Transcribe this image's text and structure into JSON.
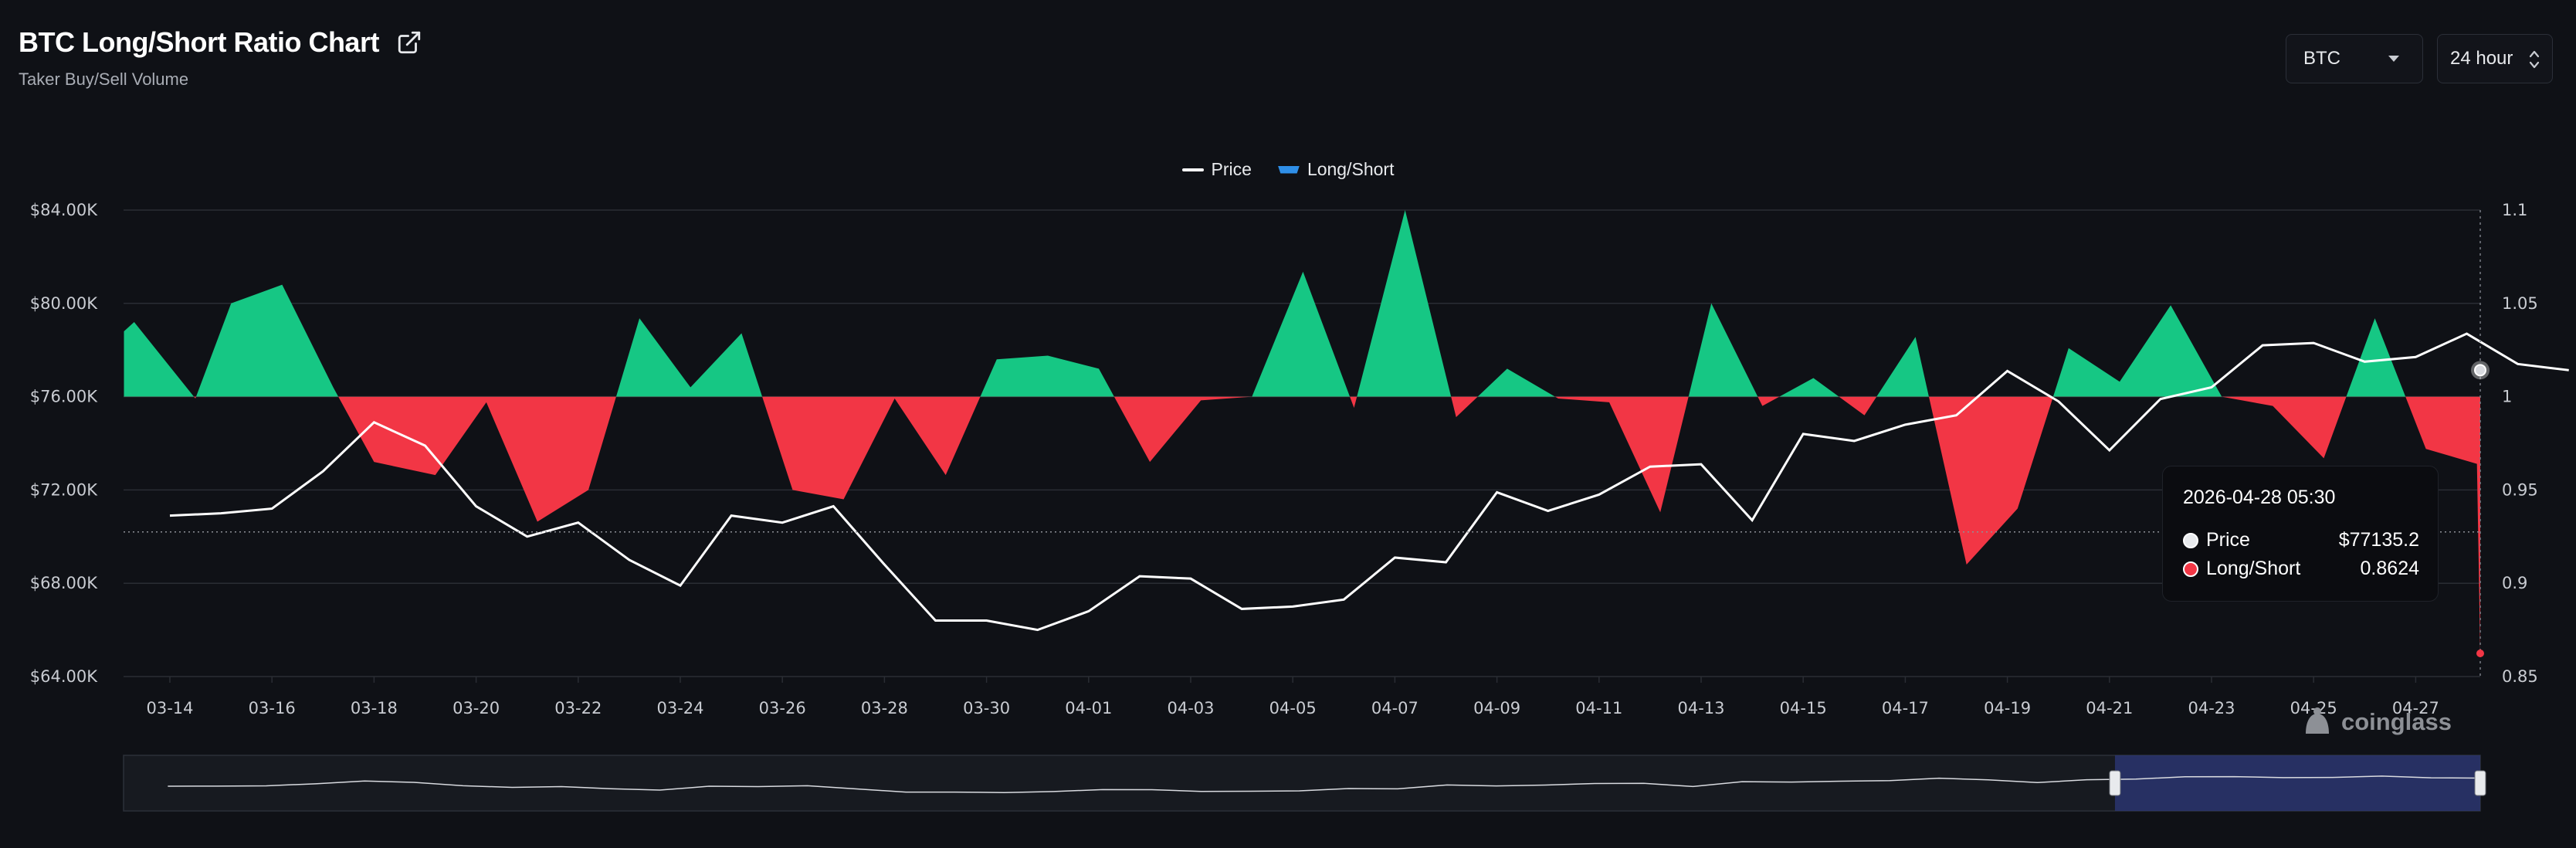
{
  "header": {
    "title": "BTC Long/Short Ratio Chart",
    "subtitle": "Taker Buy/Sell Volume"
  },
  "controls": {
    "coin_select": "BTC",
    "period_select": "24 hour"
  },
  "legend": {
    "price": "Price",
    "long_short": "Long/Short"
  },
  "tooltip": {
    "time": "2026-04-28 05:30",
    "price_label": "Price",
    "price_value": "$77135.2",
    "ratio_label": "Long/Short",
    "ratio_value": "0.8624"
  },
  "watermark": "coinglass",
  "colors": {
    "background": "#0f1116",
    "positive_area": "#16c784",
    "negative_area": "#f23645",
    "price_line": "#ffffff",
    "legend_long_short": "#2f8fe8",
    "navigator_selection": "#2a3570"
  },
  "chart_data": {
    "type": "line",
    "x_tick_labels": [
      "03-14",
      "03-16",
      "03-18",
      "03-20",
      "03-22",
      "03-24",
      "03-26",
      "03-28",
      "03-30",
      "04-01",
      "04-03",
      "04-05",
      "04-07",
      "04-09",
      "04-11",
      "04-13",
      "04-15",
      "04-17",
      "04-19",
      "04-21",
      "04-23",
      "04-25",
      "04-27"
    ],
    "y_left_ticks": [
      "$64.00K",
      "$68.00K",
      "$72.00K",
      "$76.00K",
      "$80.00K",
      "$84.00K"
    ],
    "y_left_range": [
      64000,
      84000
    ],
    "y_right_ticks": [
      "0.85",
      "0.9",
      "0.95",
      "1",
      "1.05",
      "1.1"
    ],
    "y_right_range": [
      0.85,
      1.1
    ],
    "ratio_baseline": 1,
    "grid": true,
    "series": [
      {
        "name": "Price",
        "axis": "left",
        "points": [
          [
            0,
            70900
          ],
          [
            0.5,
            71000
          ],
          [
            1,
            71200
          ],
          [
            1.5,
            72800
          ],
          [
            2,
            74900
          ],
          [
            2.5,
            73900
          ],
          [
            3,
            71300
          ],
          [
            3.5,
            70000
          ],
          [
            4,
            70600
          ],
          [
            4.5,
            69000
          ],
          [
            5,
            67900
          ],
          [
            5.5,
            70900
          ],
          [
            6,
            70600
          ],
          [
            6.5,
            71300
          ],
          [
            7,
            68800
          ],
          [
            7.5,
            66400
          ],
          [
            8,
            66400
          ],
          [
            8.5,
            66000
          ],
          [
            9,
            66800
          ],
          [
            9.5,
            68300
          ],
          [
            10,
            68200
          ],
          [
            10.5,
            66900
          ],
          [
            11,
            67000
          ],
          [
            11.5,
            67300
          ],
          [
            12,
            69100
          ],
          [
            12.5,
            68900
          ],
          [
            13,
            71900
          ],
          [
            13.5,
            71100
          ],
          [
            14,
            71800
          ],
          [
            14.5,
            73000
          ],
          [
            15,
            73100
          ],
          [
            15.5,
            70700
          ],
          [
            16,
            74400
          ],
          [
            16.5,
            74100
          ],
          [
            17,
            74800
          ],
          [
            17.5,
            75200
          ],
          [
            18,
            77100
          ],
          [
            18.5,
            75800
          ],
          [
            19,
            73700
          ],
          [
            19.5,
            75900
          ],
          [
            20,
            76400
          ],
          [
            20.5,
            78200
          ],
          [
            21,
            78300
          ],
          [
            21.5,
            77500
          ],
          [
            22,
            77700
          ],
          [
            22.5,
            78700
          ],
          [
            23,
            77400
          ],
          [
            23.5,
            77135.2
          ]
        ]
      },
      {
        "name": "Long/Short",
        "axis": "right",
        "points": [
          [
            -0.45,
            1.035
          ],
          [
            -0.35,
            1.04
          ],
          [
            0.25,
            0.999
          ],
          [
            0.6,
            1.05
          ],
          [
            1.1,
            1.06
          ],
          [
            1.6,
            1.005
          ],
          [
            2,
            0.965
          ],
          [
            2.6,
            0.958
          ],
          [
            3.1,
            0.997
          ],
          [
            3.6,
            0.933
          ],
          [
            4.1,
            0.95
          ],
          [
            4.6,
            1.042
          ],
          [
            5.1,
            1.005
          ],
          [
            5.6,
            1.034
          ],
          [
            6.1,
            0.95
          ],
          [
            6.6,
            0.945
          ],
          [
            7.1,
            0.999
          ],
          [
            7.6,
            0.958
          ],
          [
            8.1,
            1.02
          ],
          [
            8.6,
            1.022
          ],
          [
            9.1,
            1.015
          ],
          [
            9.6,
            0.965
          ],
          [
            10.1,
            0.998
          ],
          [
            10.6,
            1.0
          ],
          [
            11.1,
            1.067
          ],
          [
            11.6,
            0.994
          ],
          [
            12.1,
            1.1
          ],
          [
            12.6,
            0.989
          ],
          [
            13.1,
            1.015
          ],
          [
            13.6,
            0.999
          ],
          [
            14.1,
            0.997
          ],
          [
            14.6,
            0.938
          ],
          [
            15.1,
            1.05
          ],
          [
            15.6,
            0.995
          ],
          [
            16.1,
            1.01
          ],
          [
            16.6,
            0.99
          ],
          [
            17.1,
            1.032
          ],
          [
            17.6,
            0.91
          ],
          [
            18.1,
            0.94
          ],
          [
            18.6,
            1.026
          ],
          [
            19.1,
            1.008
          ],
          [
            19.6,
            1.049
          ],
          [
            20.1,
            1.0
          ],
          [
            20.6,
            0.995
          ],
          [
            21.1,
            0.967
          ],
          [
            21.6,
            1.042
          ],
          [
            22.1,
            0.972
          ],
          [
            22.6,
            0.964
          ],
          [
            23.1,
            0.8624
          ]
        ]
      }
    ],
    "tooltip_marker": {
      "x": "2026-04-28 05:30",
      "price": 77135.2,
      "long_short": 0.8624
    },
    "legend_position": "top-center",
    "navigator_selection_range": [
      0.845,
      1.0
    ]
  }
}
